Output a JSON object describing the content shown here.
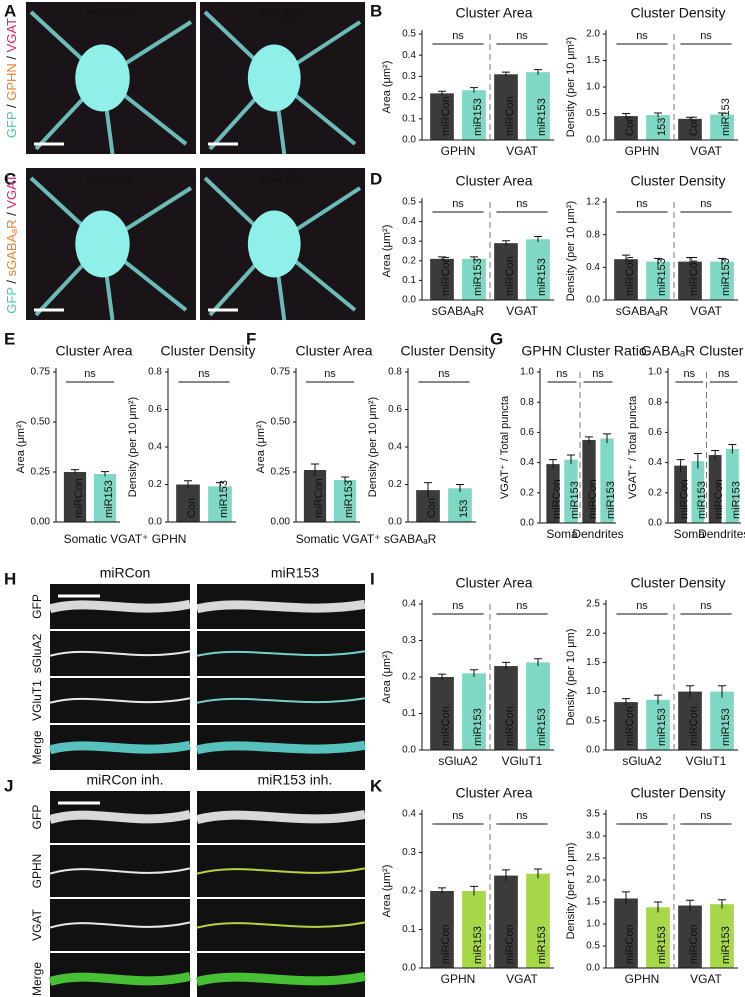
{
  "panels": [
    {
      "letter": "A",
      "kind": "image",
      "titles": [
        "miRCon",
        "miR153"
      ],
      "channels": [
        "GFP",
        "GPHN",
        "VGAT"
      ],
      "separator": "/"
    },
    {
      "letter": "B",
      "kind": "charts",
      "charts": [
        {
          "type": "bar",
          "title": "Cluster Area",
          "ylabel": "Area (μm²)",
          "ylim": [
            0,
            0.5
          ],
          "yticks": [
            {
              "value": 0,
              "label": "0.0"
            },
            0.1,
            0.2,
            0.3,
            0.4,
            0.5
          ],
          "categories": [
            "miRCon",
            "miR153",
            "miRCon",
            "miR153"
          ],
          "values": [
            0.22,
            0.235,
            0.31,
            0.32
          ],
          "errors": [
            0.01,
            0.012,
            0.01,
            0.012
          ],
          "colors": [
            "#3b3b3b",
            "#7fd8c3",
            "#3b3b3b",
            "#7fd8c3"
          ],
          "groups": [
            "GPHN",
            "VGAT"
          ],
          "group_colors": [
            "#e8832a",
            "#d6246e"
          ],
          "annotations": [
            "ns",
            "ns"
          ]
        },
        {
          "type": "bar",
          "title": "Cluster Density",
          "ylabel": "Density (per 10 μm²)",
          "ylim": [
            0,
            2
          ],
          "yticks": [
            {
              "value": 0,
              "label": "0.0"
            },
            0.5,
            {
              "value": 1,
              "label": "1.0"
            },
            1.5,
            {
              "value": 2,
              "label": "2.0"
            }
          ],
          "categories": [
            "Con",
            "153",
            "Con",
            "miR153"
          ],
          "values": [
            0.45,
            0.47,
            0.4,
            0.48
          ],
          "errors": [
            0.05,
            0.04,
            0.03,
            0.03
          ],
          "colors": [
            "#3b3b3b",
            "#7fd8c3",
            "#3b3b3b",
            "#7fd8c3"
          ],
          "groups": [
            "GPHN",
            "VGAT"
          ],
          "group_colors": [
            "#e8832a",
            "#d6246e"
          ],
          "annotations": [
            "ns",
            "ns"
          ]
        }
      ]
    },
    {
      "letter": "C",
      "kind": "image",
      "titles": [
        "miRCon",
        "miR153"
      ],
      "channels": [
        "GFP",
        "sGABAₐR",
        "VGAT"
      ],
      "separator": "/"
    },
    {
      "letter": "D",
      "kind": "charts",
      "charts": [
        {
          "type": "bar",
          "title": "Cluster Area",
          "ylabel": "Area (μm²)",
          "ylim": [
            0,
            0.5
          ],
          "yticks": [
            {
              "value": 0,
              "label": "0.0"
            },
            0.1,
            0.2,
            0.3,
            0.4,
            0.5
          ],
          "categories": [
            "miRCon",
            "miR153",
            "miRCon",
            "miR153"
          ],
          "values": [
            0.21,
            0.21,
            0.29,
            0.31
          ],
          "errors": [
            0.01,
            0.01,
            0.012,
            0.014
          ],
          "colors": [
            "#3b3b3b",
            "#7fd8c3",
            "#3b3b3b",
            "#7fd8c3"
          ],
          "groups": [
            "sGABAₐR",
            "VGAT"
          ],
          "group_colors": [
            "#e8832a",
            "#d6246e"
          ],
          "annotations": [
            "ns",
            "ns"
          ]
        },
        {
          "type": "bar",
          "title": "Cluster Density",
          "ylabel": "Density (per 10 μm²)",
          "ylim": [
            0,
            1.2
          ],
          "yticks": [
            {
              "value": 0,
              "label": "0.0"
            },
            0.4,
            0.8,
            1.2
          ],
          "categories": [
            "miRCon",
            "miR153",
            "miRCon",
            "miR153"
          ],
          "values": [
            0.5,
            0.47,
            0.47,
            0.47
          ],
          "errors": [
            0.05,
            0.04,
            0.05,
            0.04
          ],
          "colors": [
            "#3b3b3b",
            "#7fd8c3",
            "#3b3b3b",
            "#7fd8c3"
          ],
          "groups": [
            "sGABAₐR",
            "VGAT"
          ],
          "group_colors": [
            "#e8832a",
            "#d6246e"
          ],
          "annotations": [
            "ns",
            "ns"
          ]
        }
      ]
    },
    {
      "letter": "E",
      "kind": "charts",
      "footer": "Somatic VGAT⁺ GPHN",
      "footer_color": "#e8832a",
      "charts": [
        {
          "type": "bar",
          "title": "Cluster Area",
          "ylabel": "Area (μm²)",
          "ylim": [
            0,
            0.75
          ],
          "yticks": [
            {
              "value": 0,
              "label": "0.00"
            },
            0.25,
            {
              "value": 0.5,
              "label": "0.50"
            },
            0.75
          ],
          "categories": [
            "miRCon",
            "miR153"
          ],
          "values": [
            0.25,
            0.24
          ],
          "errors": [
            0.012,
            0.012
          ],
          "colors": [
            "#3b3b3b",
            "#7fd8c3"
          ],
          "annotations": [
            "ns"
          ]
        },
        {
          "type": "bar",
          "title": "Cluster Density",
          "ylabel": "Density (per 10 μm²)",
          "ylim": [
            0,
            0.8
          ],
          "yticks": [
            {
              "value": 0,
              "label": "0.0"
            },
            0.2,
            0.4,
            0.6,
            0.8
          ],
          "categories": [
            "Con",
            "miR153"
          ],
          "values": [
            0.2,
            0.19
          ],
          "errors": [
            0.02,
            0.02
          ],
          "colors": [
            "#3b3b3b",
            "#7fd8c3"
          ],
          "annotations": [
            "ns"
          ]
        }
      ]
    },
    {
      "letter": "F",
      "kind": "charts",
      "footer": "Somatic VGAT⁺ sGABAₐR",
      "footer_color": "#e8832a",
      "charts": [
        {
          "type": "bar",
          "title": "Cluster Area",
          "ylabel": "Area (μm²)",
          "ylim": [
            0,
            0.75
          ],
          "yticks": [
            {
              "value": 0,
              "label": "0.00"
            },
            0.25,
            {
              "value": 0.5,
              "label": "0.50"
            },
            0.75
          ],
          "categories": [
            "miRCon",
            "miR153"
          ],
          "values": [
            0.26,
            0.21
          ],
          "errors": [
            0.03,
            0.015
          ],
          "colors": [
            "#3b3b3b",
            "#7fd8c3"
          ],
          "annotations": [
            "ns"
          ]
        },
        {
          "type": "bar",
          "title": "Cluster Density",
          "ylabel": "Density (per 10 μm²)",
          "ylim": [
            0,
            0.8
          ],
          "yticks": [
            {
              "value": 0,
              "label": "0.0"
            },
            0.2,
            0.4,
            0.6,
            0.8
          ],
          "categories": [
            "Con",
            "153"
          ],
          "values": [
            0.17,
            0.18
          ],
          "errors": [
            0.04,
            0.02
          ],
          "colors": [
            "#3b3b3b",
            "#7fd8c3"
          ],
          "annotations": [
            "ns"
          ]
        }
      ]
    },
    {
      "letter": "G",
      "kind": "charts",
      "charts": [
        {
          "type": "bar",
          "title": "GPHN Cluster Ratio",
          "ylabel": "VGAT⁺ / Total puncta",
          "ylim": [
            0,
            1
          ],
          "yticks": [
            {
              "value": 0,
              "label": "0.0"
            },
            0.2,
            0.4,
            0.6,
            0.8,
            {
              "value": 1,
              "label": "1.0"
            }
          ],
          "categories": [
            "miRCon",
            "miR153",
            "miRCon",
            "miR153"
          ],
          "values": [
            0.39,
            0.42,
            0.55,
            0.56
          ],
          "errors": [
            0.03,
            0.03,
            0.02,
            0.03
          ],
          "colors": [
            "#3b3b3b",
            "#7fd8c3",
            "#3b3b3b",
            "#7fd8c3"
          ],
          "groups": [
            "Soma",
            "Dendrites"
          ],
          "group_colors": [
            "#111111",
            "#111111"
          ],
          "annotations": [
            "ns",
            "ns"
          ]
        },
        {
          "type": "bar",
          "title": "GABAₐR Cluster Ratio",
          "ylabel": "VGAT⁺ / Total puncta",
          "ylim": [
            0,
            1
          ],
          "yticks": [
            {
              "value": 0,
              "label": "0.0"
            },
            0.2,
            0.4,
            0.6,
            0.8,
            {
              "value": 1,
              "label": "1.0"
            }
          ],
          "categories": [
            "miRCon",
            "miR153",
            "miRCon",
            "miR153"
          ],
          "values": [
            0.38,
            0.41,
            0.45,
            0.49
          ],
          "errors": [
            0.04,
            0.05,
            0.03,
            0.03
          ],
          "colors": [
            "#3b3b3b",
            "#7fd8c3",
            "#3b3b3b",
            "#7fd8c3"
          ],
          "groups": [
            "Soma",
            "Dendrites"
          ],
          "group_colors": [
            "#111111",
            "#111111"
          ],
          "annotations": [
            "ns",
            "ns"
          ]
        }
      ]
    },
    {
      "letter": "H",
      "kind": "strip",
      "titles": [
        "miRCon",
        "miR153"
      ],
      "rows": [
        "GFP",
        "sGluA2",
        "VGluT1",
        "Merge"
      ],
      "row_colors": [
        "#46c9b0",
        "#e8832a",
        "#d6246e",
        "#111111"
      ]
    },
    {
      "letter": "I",
      "kind": "charts",
      "charts": [
        {
          "type": "bar",
          "title": "Cluster Area",
          "ylabel": "Area (μm²)",
          "ylim": [
            0,
            0.4
          ],
          "yticks": [
            {
              "value": 0,
              "label": "0.0"
            },
            0.1,
            0.2,
            0.3,
            0.4
          ],
          "categories": [
            "miRCon",
            "miR153",
            "miRCon",
            "miR153"
          ],
          "values": [
            0.2,
            0.21,
            0.23,
            0.24
          ],
          "errors": [
            0.008,
            0.01,
            0.01,
            0.01
          ],
          "colors": [
            "#3b3b3b",
            "#7fd8c3",
            "#3b3b3b",
            "#7fd8c3"
          ],
          "groups": [
            "sGluA2",
            "VGluT1"
          ],
          "group_colors": [
            "#e8832a",
            "#d6246e"
          ],
          "annotations": [
            "ns",
            "ns"
          ]
        },
        {
          "type": "bar",
          "title": "Cluster Density",
          "ylabel": "Density (per 10 μm)",
          "ylim": [
            0,
            2.5
          ],
          "yticks": [
            {
              "value": 0,
              "label": "0.0"
            },
            0.5,
            {
              "value": 1,
              "label": "1.0"
            },
            1.5,
            {
              "value": 2,
              "label": "2.0"
            },
            2.5
          ],
          "categories": [
            "miRCon",
            "miR153",
            "miRCon",
            "miR153"
          ],
          "values": [
            0.82,
            0.86,
            1.0,
            1.0
          ],
          "errors": [
            0.06,
            0.08,
            0.1,
            0.1
          ],
          "colors": [
            "#3b3b3b",
            "#7fd8c3",
            "#3b3b3b",
            "#7fd8c3"
          ],
          "groups": [
            "sGluA2",
            "VGluT1"
          ],
          "group_colors": [
            "#e8832a",
            "#d6246e"
          ],
          "annotations": [
            "ns",
            "ns"
          ]
        }
      ]
    },
    {
      "letter": "J",
      "kind": "strip",
      "titles": [
        "miRCon inh.",
        "miR153 inh."
      ],
      "rows": [
        "GFP",
        "GPHN",
        "VGAT",
        "Merge"
      ],
      "row_colors": [
        "#b5d93a",
        "#e8832a",
        "#d6246e",
        "#111111"
      ]
    },
    {
      "letter": "K",
      "kind": "charts",
      "charts": [
        {
          "type": "bar",
          "title": "Cluster Area",
          "ylabel": "Area (μm²)",
          "ylim": [
            0,
            0.4
          ],
          "yticks": [
            {
              "value": 0,
              "label": "0.0"
            },
            0.1,
            0.2,
            0.3,
            0.4
          ],
          "categories": [
            "miRCon",
            "miR153",
            "miRCon",
            "miR153"
          ],
          "values": [
            0.2,
            0.2,
            0.24,
            0.245
          ],
          "errors": [
            0.008,
            0.012,
            0.015,
            0.012
          ],
          "colors": [
            "#3b3b3b",
            "#a6d84a",
            "#3b3b3b",
            "#a6d84a"
          ],
          "groups": [
            "GPHN",
            "VGAT"
          ],
          "group_colors": [
            "#e8832a",
            "#d6246e"
          ],
          "annotations": [
            "ns",
            "ns"
          ]
        },
        {
          "type": "bar",
          "title": "Cluster Density",
          "ylabel": "Density (per 10 μm)",
          "ylim": [
            0,
            3.5
          ],
          "yticks": [
            {
              "value": 0,
              "label": "0.0"
            },
            0.5,
            {
              "value": 1,
              "label": "1.0"
            },
            1.5,
            {
              "value": 2,
              "label": "2.0"
            },
            2.5,
            {
              "value": 3,
              "label": "3.0"
            },
            3.5
          ],
          "categories": [
            "miRCon",
            "miR153",
            "miRCon",
            "miR153"
          ],
          "values": [
            1.58,
            1.38,
            1.42,
            1.45
          ],
          "errors": [
            0.15,
            0.12,
            0.12,
            0.1
          ],
          "colors": [
            "#3b3b3b",
            "#a6d84a",
            "#3b3b3b",
            "#a6d84a"
          ],
          "groups": [
            "GPHN",
            "VGAT"
          ],
          "group_colors": [
            "#e8832a",
            "#d6246e"
          ],
          "annotations": [
            "ns",
            "ns"
          ]
        }
      ]
    }
  ]
}
